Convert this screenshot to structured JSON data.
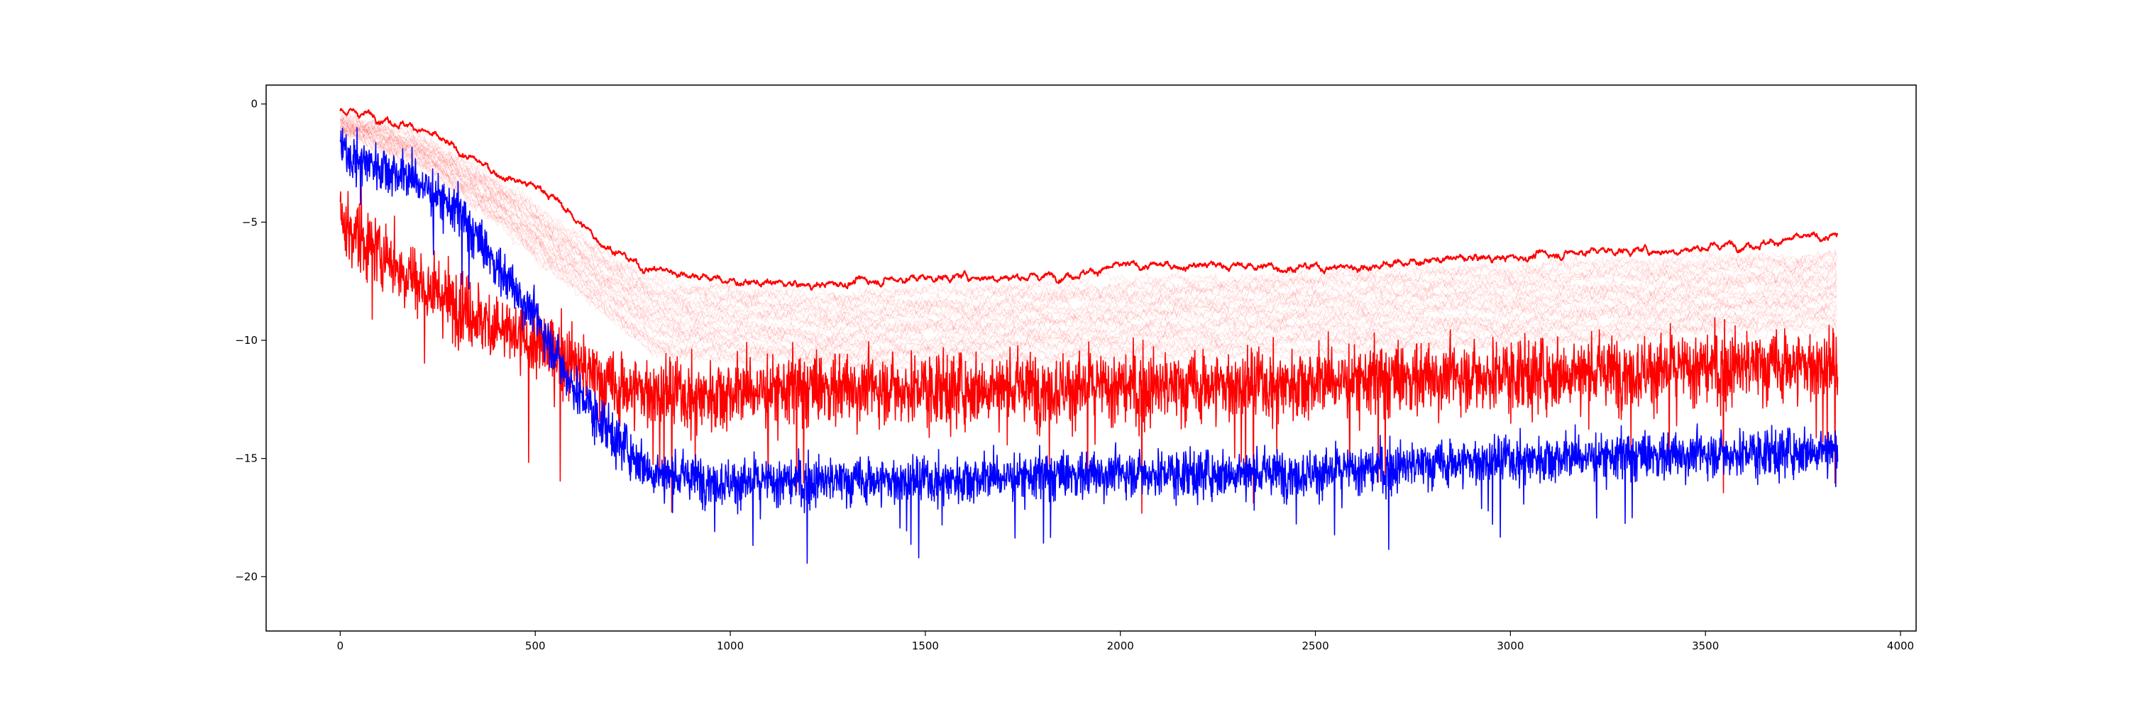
{
  "chart_data": {
    "type": "line",
    "title": "",
    "xlabel": "",
    "ylabel": "",
    "xlim": [
      -190,
      4040
    ],
    "ylim": [
      -22.3,
      0.8
    ],
    "x_ticks": [
      0,
      500,
      1000,
      1500,
      2000,
      2500,
      3000,
      3500,
      4000
    ],
    "y_ticks": [
      0,
      -5,
      -10,
      -15,
      -20
    ],
    "x_tick_labels": [
      "0",
      "500",
      "1000",
      "1500",
      "2000",
      "2500",
      "3000",
      "3500",
      "4000"
    ],
    "y_tick_labels": [
      "0",
      "−5",
      "−10",
      "−15",
      "−20"
    ],
    "grid": false,
    "legend": "none",
    "n_points": 3840,
    "series": [
      {
        "role": "upper envelope",
        "color": "#ff0000",
        "anchors": [
          [
            0,
            -0.3
          ],
          [
            100,
            -0.5
          ],
          [
            200,
            -1.0
          ],
          [
            300,
            -2.0
          ],
          [
            400,
            -2.9
          ],
          [
            530,
            -3.7
          ],
          [
            650,
            -5.6
          ],
          [
            770,
            -6.9
          ],
          [
            900,
            -7.2
          ],
          [
            1000,
            -7.5
          ],
          [
            1200,
            -7.7
          ],
          [
            1400,
            -7.4
          ],
          [
            1600,
            -7.3
          ],
          [
            1800,
            -7.3
          ],
          [
            2000,
            -6.9
          ],
          [
            2200,
            -6.8
          ],
          [
            2400,
            -6.9
          ],
          [
            2600,
            -6.9
          ],
          [
            2800,
            -6.6
          ],
          [
            3000,
            -6.5
          ],
          [
            3200,
            -6.2
          ],
          [
            3400,
            -6.2
          ],
          [
            3600,
            -5.9
          ],
          [
            3840,
            -5.6
          ]
        ],
        "noise": 0.18
      },
      {
        "role": "noisy red",
        "color": "#ff0000",
        "anchors": [
          [
            0,
            -5.0
          ],
          [
            200,
            -7.5
          ],
          [
            400,
            -9.5
          ],
          [
            550,
            -10.5
          ],
          [
            700,
            -12.0
          ],
          [
            900,
            -12.3
          ],
          [
            1200,
            -12.0
          ],
          [
            1500,
            -12.0
          ],
          [
            1800,
            -12.0
          ],
          [
            2100,
            -12.0
          ],
          [
            2400,
            -11.8
          ],
          [
            2700,
            -11.6
          ],
          [
            3000,
            -11.4
          ],
          [
            3300,
            -11.3
          ],
          [
            3600,
            -11.1
          ],
          [
            3840,
            -11.0
          ]
        ],
        "noise": 1.3
      },
      {
        "role": "noisy blue",
        "color": "#0000ff",
        "anchors": [
          [
            0,
            -2.0
          ],
          [
            100,
            -2.6
          ],
          [
            200,
            -3.3
          ],
          [
            300,
            -4.5
          ],
          [
            400,
            -6.8
          ],
          [
            500,
            -9.0
          ],
          [
            600,
            -12.0
          ],
          [
            700,
            -14.0
          ],
          [
            800,
            -15.6
          ],
          [
            1000,
            -16.0
          ],
          [
            1500,
            -15.9
          ],
          [
            2000,
            -15.6
          ],
          [
            2500,
            -15.6
          ],
          [
            3000,
            -15.0
          ],
          [
            3500,
            -14.8
          ],
          [
            3840,
            -14.6
          ]
        ],
        "noise": 0.85
      }
    ],
    "faint_band": {
      "color": "#ff0000",
      "count": 34,
      "upper_anchors": [
        [
          0,
          -0.5
        ],
        [
          200,
          -1.3
        ],
        [
          400,
          -3.2
        ],
        [
          650,
          -6.0
        ],
        [
          800,
          -7.4
        ],
        [
          1200,
          -8.0
        ],
        [
          2000,
          -7.4
        ],
        [
          3000,
          -6.8
        ],
        [
          3840,
          -6.2
        ]
      ],
      "lower_anchors": [
        [
          0,
          -1.2
        ],
        [
          200,
          -2.5
        ],
        [
          400,
          -5.0
        ],
        [
          650,
          -8.5
        ],
        [
          800,
          -10.5
        ],
        [
          1200,
          -11.2
        ],
        [
          2000,
          -10.8
        ],
        [
          3000,
          -10.2
        ],
        [
          3840,
          -9.5
        ]
      ]
    }
  }
}
